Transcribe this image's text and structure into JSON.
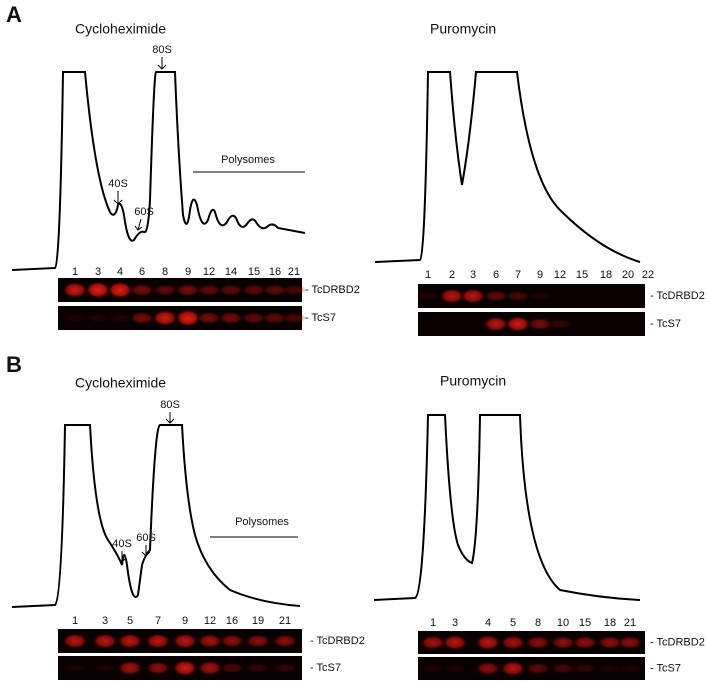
{
  "panels": [
    {
      "label": "A",
      "left": {
        "title": "Cycloheximide",
        "peaks": [
          "80S",
          "40S",
          "60S"
        ],
        "region": "Polysomes",
        "fractions": [
          1,
          3,
          4,
          6,
          8,
          9,
          12,
          14,
          15,
          16,
          21
        ],
        "blots": [
          "- TcDRBD2",
          "- TcS7"
        ]
      },
      "right": {
        "title": "Puromycin",
        "fractions": [
          1,
          2,
          3,
          6,
          7,
          9,
          12,
          15,
          18,
          20,
          22
        ],
        "blots": [
          "- TcDRBD2",
          "- TcS7"
        ]
      }
    },
    {
      "label": "B",
      "left": {
        "title": "Cycloheximide",
        "peaks": [
          "80S",
          "40S",
          "60S"
        ],
        "region": "Polysomes",
        "fractions": [
          1,
          3,
          5,
          7,
          9,
          12,
          16,
          19,
          21
        ],
        "blots": [
          "- TcDRBD2",
          "- TcS7"
        ]
      },
      "right": {
        "title": "Puromycin",
        "fractions": [
          1,
          3,
          4,
          5,
          8,
          10,
          15,
          18,
          21
        ],
        "blots": [
          "- TcDRBD2",
          "- TcS7"
        ]
      }
    }
  ]
}
